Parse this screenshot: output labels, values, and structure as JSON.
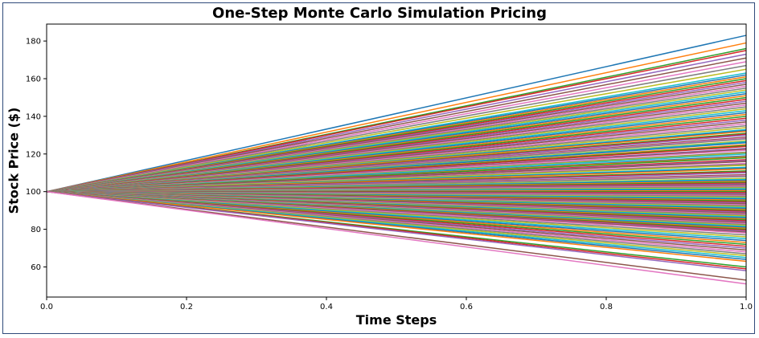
{
  "chart_data": {
    "type": "line",
    "title": "One-Step Monte Carlo Simulation Pricing",
    "xlabel": "Time Steps",
    "ylabel": "Stock Price ($)",
    "xlim": [
      0.0,
      1.0
    ],
    "ylim": [
      44,
      189
    ],
    "x_ticks": [
      0.0,
      0.2,
      0.4,
      0.6,
      0.8,
      1.0
    ],
    "x_tick_labels": [
      "0.0",
      "0.2",
      "0.4",
      "0.6",
      "0.8",
      "1.0"
    ],
    "y_ticks": [
      60,
      80,
      100,
      120,
      140,
      160,
      180
    ],
    "y_tick_labels": [
      "60",
      "80",
      "100",
      "120",
      "140",
      "160",
      "180"
    ],
    "grid": false,
    "legend": "none",
    "x": [
      0.0,
      1.0
    ],
    "start_value": 100,
    "end_values": [
      183,
      179,
      176,
      175,
      173,
      171,
      169,
      167,
      165,
      163,
      162,
      161,
      160,
      159,
      158,
      157,
      156,
      155,
      154,
      153,
      152,
      151,
      150,
      149,
      148,
      147,
      146,
      145,
      144,
      143,
      142,
      141,
      140,
      139,
      138,
      137,
      136,
      135,
      134,
      133,
      132.5,
      132,
      131,
      130.5,
      130,
      129,
      128.5,
      128,
      127,
      126.5,
      126,
      125,
      124.5,
      124,
      123,
      122.5,
      122,
      121,
      120.5,
      120,
      119,
      118.5,
      118,
      117,
      116.5,
      116,
      115,
      114.5,
      114,
      113,
      112.5,
      112,
      111,
      110.5,
      110,
      109,
      108.5,
      108,
      107,
      106.5,
      106,
      105.5,
      105,
      104.5,
      104,
      103.5,
      103,
      102.5,
      102,
      101.5,
      101,
      100.5,
      100,
      99.5,
      99,
      98.5,
      98,
      97.5,
      97,
      96.5,
      96,
      95.5,
      95,
      94.5,
      94,
      93.5,
      93,
      92.5,
      92,
      91.5,
      91,
      90.5,
      90,
      89.5,
      89,
      88.5,
      88,
      87.5,
      87,
      86.5,
      86,
      85.5,
      85,
      84.5,
      84,
      83.5,
      83,
      82.5,
      82,
      81.5,
      81,
      80.5,
      80,
      79.5,
      79,
      78.5,
      78,
      77,
      76,
      75,
      74,
      73,
      72,
      71,
      70,
      69,
      68,
      67,
      66,
      65,
      64,
      63,
      60,
      59,
      58,
      53,
      51
    ],
    "series_colors": [
      "#1f77b4",
      "#ff7f0e",
      "#2ca02c",
      "#d62728",
      "#9467bd",
      "#8c564b",
      "#e377c2",
      "#7f7f7f",
      "#bcbd22",
      "#17becf"
    ]
  }
}
